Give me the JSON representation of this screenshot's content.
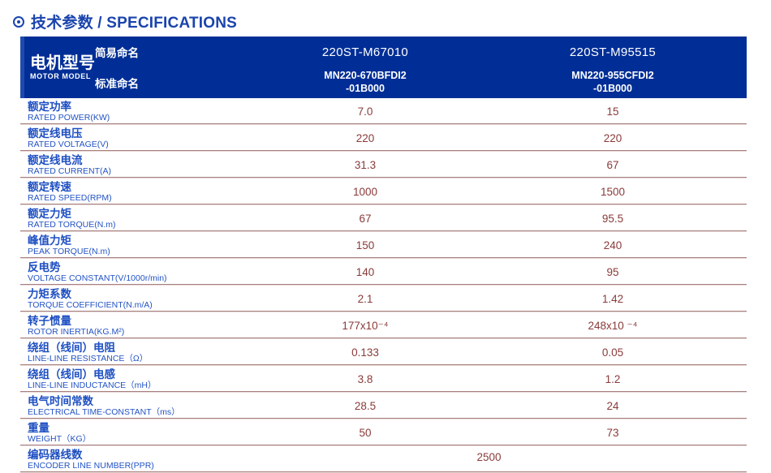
{
  "title": {
    "text": "技术参数 / SPECIFICATIONS"
  },
  "colors": {
    "header_bg": "#012e96",
    "header_stripe": "#1e4aad",
    "title_blue": "#1a44ad",
    "label_blue": "#2253c5",
    "value_maroon": "#8a3a3a",
    "divider_dark": "#a5817f",
    "divider_light": "#e9d9d8"
  },
  "table": {
    "header": {
      "model_label_zh": "电机型号",
      "model_label_en": "MOTOR MODEL",
      "simple_name_label": "简易命名",
      "standard_name_label": "标准命名",
      "columns": [
        {
          "simple_name": "220ST-M67010",
          "standard_name_line1": "MN220-670BFDI2",
          "standard_name_line2": "-01B000"
        },
        {
          "simple_name": "220ST-M95515",
          "standard_name_line1": "MN220-955CFDI2",
          "standard_name_line2": "-01B000"
        }
      ]
    },
    "rows": [
      {
        "zh": "额定功率",
        "en": "RATED POWER(KW)",
        "v1": "7.0",
        "v2": "15"
      },
      {
        "zh": "额定线电压",
        "en": "RATED VOLTAGE(V)",
        "v1": "220",
        "v2": "220"
      },
      {
        "zh": "额定线电流",
        "en": "RATED CURRENT(A)",
        "v1": "31.3",
        "v2": "67"
      },
      {
        "zh": "额定转速",
        "en": "RATED SPEED(RPM)",
        "v1": "1000",
        "v2": "1500"
      },
      {
        "zh": "额定力矩",
        "en": "RATED TORQUE(N.m)",
        "v1": "67",
        "v2": "95.5"
      },
      {
        "zh": "峰值力矩",
        "en": "PEAK TORQUE(N.m)",
        "v1": "150",
        "v2": "240"
      },
      {
        "zh": "反电势",
        "en": "VOLTAGE CONSTANT(V/1000r/min)",
        "v1": "140",
        "v2": "95"
      },
      {
        "zh": "力矩系数",
        "en": "TORQUE COEFFICIENT(N.m/A)",
        "v1": "2.1",
        "v2": "1.42"
      },
      {
        "zh": "转子惯量",
        "en": "ROTOR INERTIA(KG.M²)",
        "v1": "177x10⁻⁴",
        "v2": "248x10 ⁻⁴"
      },
      {
        "zh": "绕组（线间）电阻",
        "en": "LINE-LINE RESISTANCE（Ω）",
        "v1": "0.133",
        "v2": "0.05"
      },
      {
        "zh": "绕组（线间）电感",
        "en": "LINE-LINE INDUCTANCE（mH）",
        "v1": "3.8",
        "v2": "1.2"
      },
      {
        "zh": "电气时间常数",
        "en": "ELECTRICAL TIME-CONSTANT（ms）",
        "v1": "28.5",
        "v2": "24"
      },
      {
        "zh": "重量",
        "en": "WEIGHT（KG）",
        "v1": "50",
        "v2": "73"
      },
      {
        "zh": "编码器线数",
        "en": "ENCODER LINE NUMBER(PPR)",
        "span": "2500"
      }
    ]
  }
}
